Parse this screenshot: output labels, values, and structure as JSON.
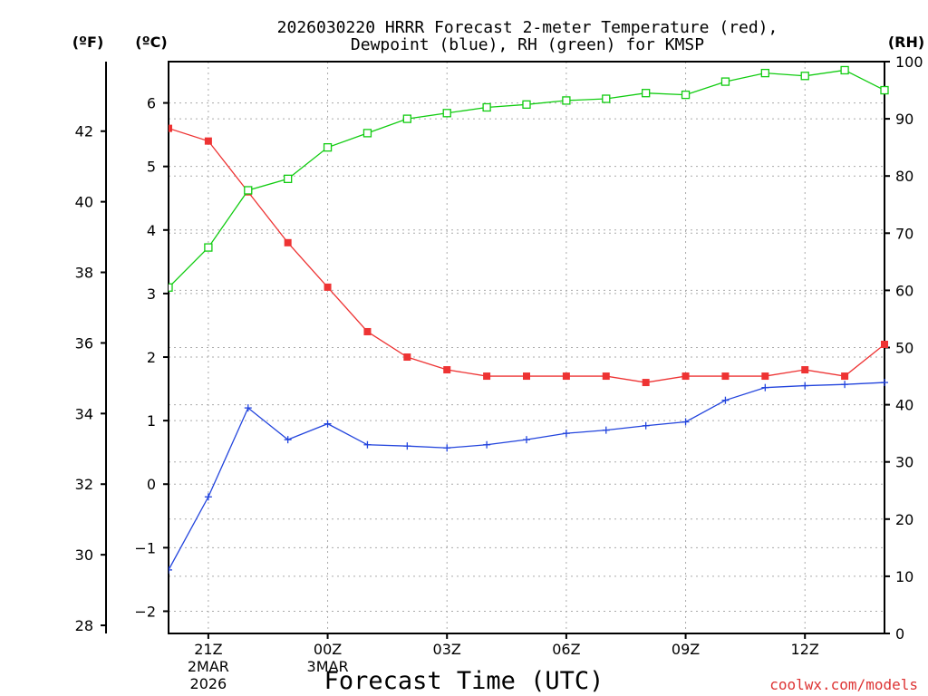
{
  "chart_data": {
    "type": "line",
    "title_line1": "2026030220 HRRR Forecast 2-meter Temperature (red),",
    "title_line2": "Dewpoint (blue), RH (green) for KMSP",
    "xlabel": "Forecast Time (UTC)",
    "unit_left_outer": "(ºF)",
    "unit_left_inner": "(ºC)",
    "unit_right": "(RH)",
    "credit": "coolwx.com/models",
    "hours": [
      20,
      21,
      22,
      23,
      24,
      25,
      26,
      27,
      28,
      29,
      30,
      31,
      32,
      33,
      34,
      35,
      36,
      37,
      38
    ],
    "x_ticks": [
      {
        "hour": 21,
        "lines": [
          "21Z",
          "2MAR",
          "2026"
        ]
      },
      {
        "hour": 24,
        "lines": [
          "00Z",
          "3MAR"
        ]
      },
      {
        "hour": 27,
        "lines": [
          "03Z"
        ]
      },
      {
        "hour": 30,
        "lines": [
          "06Z"
        ]
      },
      {
        "hour": 33,
        "lines": [
          "09Z"
        ]
      },
      {
        "hour": 36,
        "lines": [
          "12Z"
        ]
      }
    ],
    "ylim_c": [
      -2.35,
      6.65
    ],
    "yticks_c": [
      -2,
      -1,
      0,
      1,
      2,
      3,
      4,
      5,
      6
    ],
    "yticks_f": [
      28,
      30,
      32,
      34,
      36,
      38,
      40,
      42
    ],
    "ylim_rh": [
      0,
      100
    ],
    "yticks_rh": [
      0,
      10,
      20,
      30,
      40,
      50,
      60,
      70,
      80,
      90,
      100
    ],
    "grid": true,
    "series": [
      {
        "name": "Temperature",
        "unit": "C",
        "color": "#ee3333",
        "marker": "filled-square",
        "values": [
          5.6,
          5.4,
          4.6,
          3.8,
          3.1,
          2.4,
          2.0,
          1.8,
          1.7,
          1.7,
          1.7,
          1.7,
          1.6,
          1.7,
          1.7,
          1.7,
          1.8,
          1.7,
          2.2
        ]
      },
      {
        "name": "Dewpoint",
        "unit": "C",
        "color": "#2244dd",
        "marker": "plus",
        "values": [
          -1.35,
          -0.2,
          1.2,
          0.7,
          0.95,
          0.62,
          0.6,
          0.57,
          0.62,
          0.7,
          0.8,
          0.85,
          0.92,
          0.98,
          1.32,
          1.52,
          1.55,
          1.57,
          1.6
        ]
      },
      {
        "name": "RH",
        "unit": "%",
        "color": "#11cc11",
        "marker": "open-square",
        "values": [
          60.5,
          67.5,
          77.5,
          79.5,
          85.0,
          87.5,
          90.0,
          91.0,
          92.0,
          92.5,
          93.2,
          93.5,
          94.5,
          94.2,
          96.5,
          98.0,
          97.5,
          98.5,
          95.0
        ]
      }
    ]
  }
}
